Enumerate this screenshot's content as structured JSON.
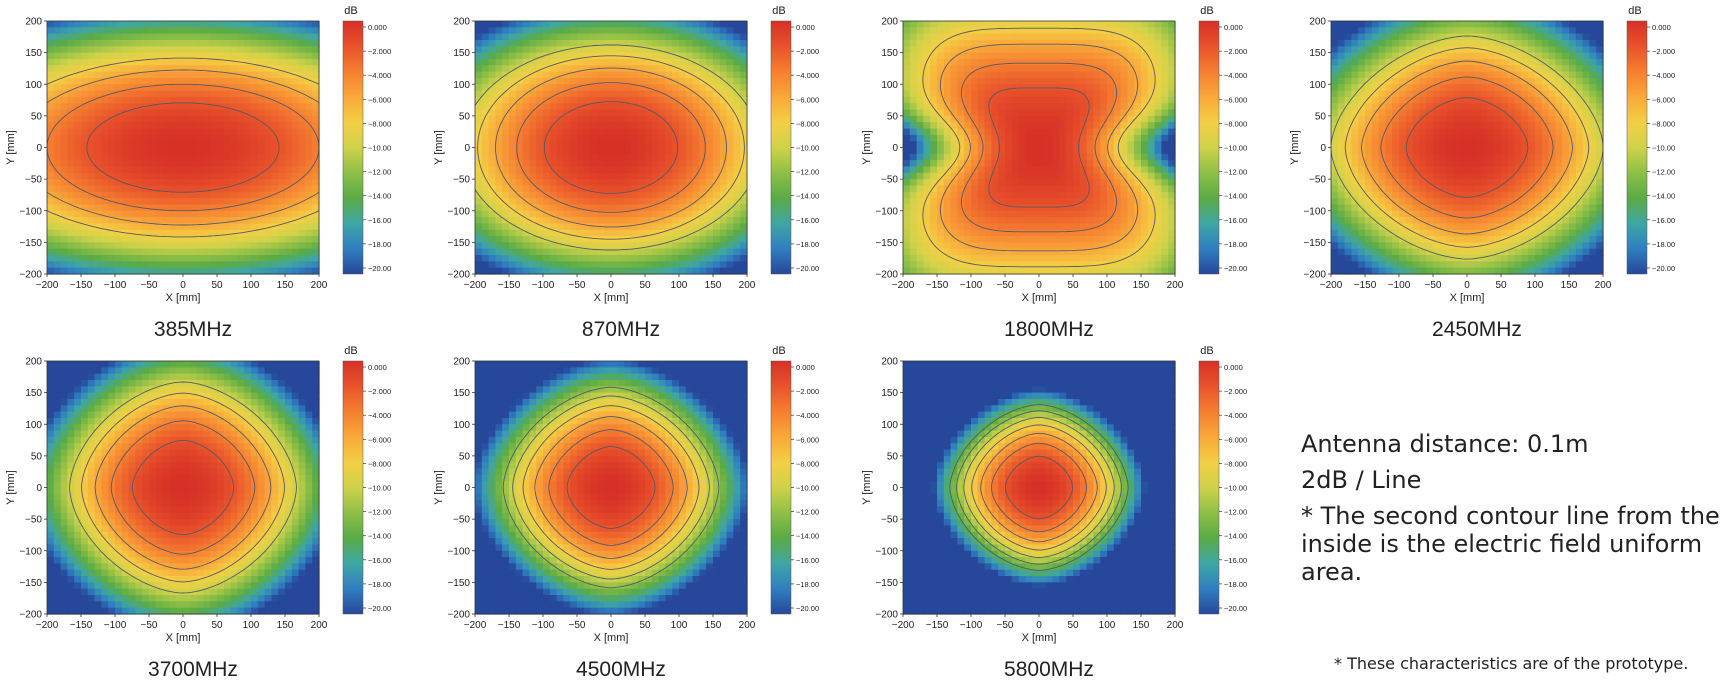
{
  "notes": {
    "antenna_distance": "Antenna distance: 0.1m",
    "line_step": "2dB / Line",
    "uniform_note": "* The second contour line from the inside is the electric field uniform area.",
    "footnote": "* These characteristics are of the prototype."
  },
  "colorscale": {
    "unit": "dB",
    "ticks": [
      "0.000",
      "-2.000",
      "-4.000",
      "-6.000",
      "-8.000",
      "-10.00",
      "-12.00",
      "-14.00",
      "-16.00",
      "-18.00",
      "-20.00"
    ],
    "colors": [
      "#d73027",
      "#e8532b",
      "#f57f31",
      "#f9a83a",
      "#f3cf45",
      "#cfd24a",
      "#8fbf47",
      "#5aab45",
      "#3fa6a4",
      "#2f7fc1",
      "#27479a"
    ],
    "range": [
      -20,
      0
    ]
  },
  "chart_data": [
    {
      "type": "heatmap",
      "title": "385MHz",
      "xlabel": "X [mm]",
      "ylabel": "Y [mm]",
      "xlim": [
        -200,
        200
      ],
      "ylim": [
        -200,
        200
      ],
      "xticks": [
        "-200",
        "-150",
        "-100",
        "-50",
        "0",
        "50",
        "100",
        "150",
        "200"
      ],
      "yticks": [
        "200",
        "150",
        "100",
        "50",
        "0",
        "-50",
        "-100",
        "-150",
        "-200"
      ],
      "contours_db": [
        -2,
        -4,
        -6,
        -8
      ],
      "peak_db": 0,
      "edge_db": -9,
      "rx_mm": 300,
      "ry_mm": 150,
      "shape": 0
    },
    {
      "type": "heatmap",
      "title": "870MHz",
      "xlabel": "X [mm]",
      "ylabel": "Y [mm]",
      "xlim": [
        -200,
        200
      ],
      "ylim": [
        -200,
        200
      ],
      "xticks": [
        "-200",
        "-150",
        "-100",
        "-50",
        "0",
        "50",
        "100",
        "150",
        "200"
      ],
      "yticks": [
        "200",
        "150",
        "100",
        "50",
        "0",
        "-50",
        "-100",
        "-150",
        "-200"
      ],
      "contours_db": [
        -2,
        -4,
        -6,
        -8,
        -10
      ],
      "peak_db": 0,
      "edge_db": -11,
      "rx_mm": 230,
      "ry_mm": 170,
      "shape": 0
    },
    {
      "type": "heatmap",
      "title": "1800MHz",
      "xlabel": "X [mm]",
      "ylabel": "Y [mm]",
      "xlim": [
        -200,
        200
      ],
      "ylim": [
        -200,
        200
      ],
      "xticks": [
        "-200",
        "-150",
        "-100",
        "-50",
        "0",
        "50",
        "100",
        "150",
        "200"
      ],
      "yticks": [
        "200",
        "150",
        "100",
        "50",
        "0",
        "-50",
        "-100",
        "-150",
        "-200"
      ],
      "contours_db": [
        -2,
        -4,
        -6,
        -8
      ],
      "peak_db": 0,
      "edge_db": -9,
      "rx_mm": 190,
      "ry_mm": 200,
      "shape": 1
    },
    {
      "type": "heatmap",
      "title": "2450MHz",
      "xlabel": "X [mm]",
      "ylabel": "Y [mm]",
      "xlim": [
        -200,
        200
      ],
      "ylim": [
        -200,
        200
      ],
      "xticks": [
        "-200",
        "-150",
        "-100",
        "-50",
        "0",
        "50",
        "100",
        "150",
        "200"
      ],
      "yticks": [
        "200",
        "150",
        "100",
        "50",
        "0",
        "-50",
        "-100",
        "-150",
        "-200"
      ],
      "contours_db": [
        -2,
        -4,
        -6,
        -8,
        -10
      ],
      "peak_db": 0,
      "edge_db": -11,
      "rx_mm": 210,
      "ry_mm": 185,
      "shape": 2
    },
    {
      "type": "heatmap",
      "title": "3700MHz",
      "xlabel": "X [mm]",
      "ylabel": "Y [mm]",
      "xlim": [
        -200,
        200
      ],
      "ylim": [
        -200,
        200
      ],
      "xticks": [
        "-200",
        "-150",
        "-100",
        "-50",
        "0",
        "50",
        "100",
        "150",
        "200"
      ],
      "yticks": [
        "200",
        "150",
        "100",
        "50",
        "0",
        "-50",
        "-100",
        "-150",
        "-200"
      ],
      "contours_db": [
        -2,
        -4,
        -6,
        -8,
        -10
      ],
      "peak_db": 0,
      "edge_db": -11,
      "rx_mm": 175,
      "ry_mm": 175,
      "shape": 2
    },
    {
      "type": "heatmap",
      "title": "4500MHz",
      "xlabel": "X [mm]",
      "ylabel": "Y [mm]",
      "xlim": [
        -200,
        200
      ],
      "ylim": [
        -200,
        200
      ],
      "xticks": [
        "-200",
        "-150",
        "-100",
        "-50",
        "0",
        "50",
        "100",
        "150",
        "200"
      ],
      "yticks": [
        "200",
        "150",
        "100",
        "50",
        "0",
        "-50",
        "-100",
        "-150",
        "-200"
      ],
      "contours_db": [
        -2,
        -4,
        -6,
        -8,
        -10,
        -12
      ],
      "peak_db": 0,
      "edge_db": -13,
      "rx_mm": 165,
      "ry_mm": 165,
      "shape": 2
    },
    {
      "type": "heatmap",
      "title": "5800MHz",
      "xlabel": "X [mm]",
      "ylabel": "Y [mm]",
      "xlim": [
        -200,
        200
      ],
      "ylim": [
        -200,
        200
      ],
      "xticks": [
        "-200",
        "-150",
        "-100",
        "-50",
        "0",
        "50",
        "100",
        "150",
        "200"
      ],
      "yticks": [
        "200",
        "150",
        "100",
        "50",
        "0",
        "-50",
        "-100",
        "-150",
        "-200"
      ],
      "contours_db": [
        -2,
        -4,
        -6,
        -8,
        -10,
        -12,
        -14
      ],
      "peak_db": 0,
      "edge_db": -16,
      "rx_mm": 140,
      "ry_mm": 140,
      "shape": 2
    }
  ]
}
